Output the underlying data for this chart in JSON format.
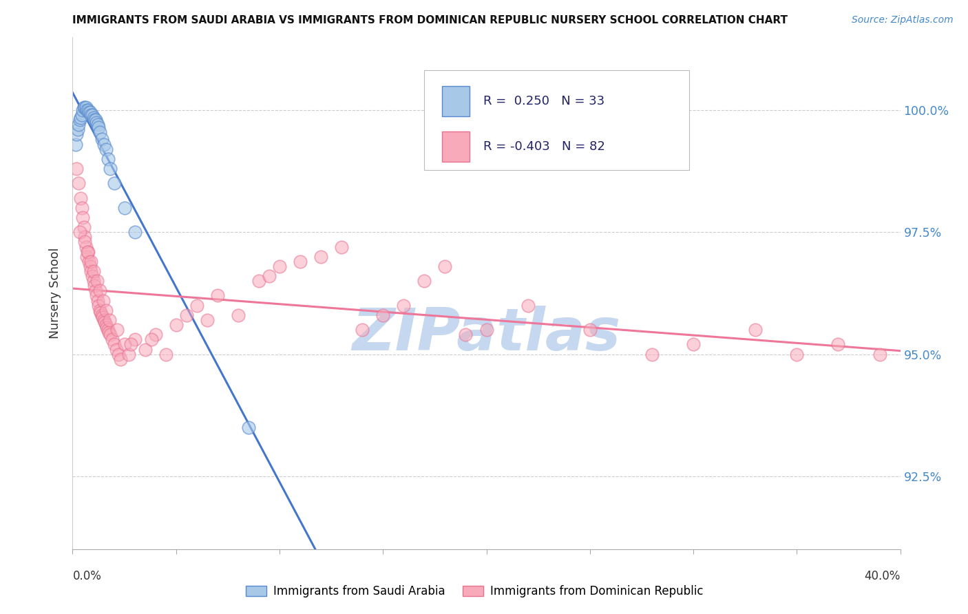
{
  "title": "IMMIGRANTS FROM SAUDI ARABIA VS IMMIGRANTS FROM DOMINICAN REPUBLIC NURSERY SCHOOL CORRELATION CHART",
  "source": "Source: ZipAtlas.com",
  "ylabel": "Nursery School",
  "ytick_values": [
    92.5,
    95.0,
    97.5,
    100.0
  ],
  "ytick_labels": [
    "92.5%",
    "95.0%",
    "97.5%",
    "100.0%"
  ],
  "xlim": [
    0.0,
    40.0
  ],
  "ylim": [
    91.0,
    101.5
  ],
  "legend_r_blue": " 0.250",
  "legend_n_blue": "33",
  "legend_r_pink": "-0.403",
  "legend_n_pink": "82",
  "blue_face": "#A8C8E8",
  "blue_edge": "#5588CC",
  "pink_face": "#F8AABB",
  "pink_edge": "#E87090",
  "blue_line": "#4477CC",
  "pink_line": "#EE7799",
  "watermark_color": "#C5D8EF",
  "xtick_bottom_left": "0.0%",
  "xtick_bottom_right": "40.0%",
  "saudi_x": [
    0.15,
    0.2,
    0.25,
    0.3,
    0.35,
    0.4,
    0.45,
    0.5,
    0.55,
    0.6,
    0.65,
    0.7,
    0.75,
    0.8,
    0.85,
    0.9,
    0.95,
    1.0,
    1.05,
    1.1,
    1.15,
    1.2,
    1.25,
    1.3,
    1.4,
    1.5,
    1.6,
    1.7,
    1.8,
    2.0,
    2.5,
    3.0,
    8.5
  ],
  "saudi_y": [
    99.3,
    99.5,
    99.6,
    99.7,
    99.8,
    99.85,
    99.9,
    100.0,
    100.05,
    100.05,
    100.05,
    100.0,
    100.0,
    99.95,
    99.95,
    99.9,
    99.9,
    99.85,
    99.8,
    99.8,
    99.75,
    99.7,
    99.65,
    99.55,
    99.4,
    99.3,
    99.2,
    99.0,
    98.8,
    98.5,
    98.0,
    97.5,
    93.5
  ],
  "dr_x": [
    0.2,
    0.3,
    0.4,
    0.45,
    0.5,
    0.55,
    0.6,
    0.65,
    0.7,
    0.75,
    0.8,
    0.85,
    0.9,
    0.95,
    1.0,
    1.05,
    1.1,
    1.15,
    1.2,
    1.25,
    1.3,
    1.35,
    1.4,
    1.45,
    1.5,
    1.55,
    1.6,
    1.65,
    1.7,
    1.75,
    1.8,
    1.9,
    2.0,
    2.1,
    2.2,
    2.3,
    2.5,
    2.7,
    3.0,
    3.5,
    4.0,
    4.5,
    5.0,
    5.5,
    6.0,
    7.0,
    8.0,
    9.0,
    10.0,
    11.0,
    12.0,
    13.0,
    14.0,
    15.0,
    16.0,
    17.0,
    18.0,
    20.0,
    22.0,
    25.0,
    28.0,
    30.0,
    33.0,
    35.0,
    37.0,
    39.0,
    0.35,
    0.58,
    0.72,
    0.88,
    1.02,
    1.18,
    1.32,
    1.48,
    1.62,
    1.78,
    2.15,
    2.8,
    3.8,
    6.5,
    9.5,
    19.0
  ],
  "dr_y": [
    98.8,
    98.5,
    98.2,
    98.0,
    97.8,
    97.6,
    97.4,
    97.2,
    97.0,
    97.1,
    96.9,
    96.8,
    96.7,
    96.6,
    96.5,
    96.4,
    96.3,
    96.2,
    96.1,
    96.0,
    95.9,
    95.85,
    95.8,
    95.75,
    95.7,
    95.65,
    95.6,
    95.55,
    95.5,
    95.45,
    95.4,
    95.3,
    95.2,
    95.1,
    95.0,
    94.9,
    95.2,
    95.0,
    95.3,
    95.1,
    95.4,
    95.0,
    95.6,
    95.8,
    96.0,
    96.2,
    95.8,
    96.5,
    96.8,
    96.9,
    97.0,
    97.2,
    95.5,
    95.8,
    96.0,
    96.5,
    96.8,
    95.5,
    96.0,
    95.5,
    95.0,
    95.2,
    95.5,
    95.0,
    95.2,
    95.0,
    97.5,
    97.3,
    97.1,
    96.9,
    96.7,
    96.5,
    96.3,
    96.1,
    95.9,
    95.7,
    95.5,
    95.2,
    95.3,
    95.7,
    96.6,
    95.4
  ]
}
